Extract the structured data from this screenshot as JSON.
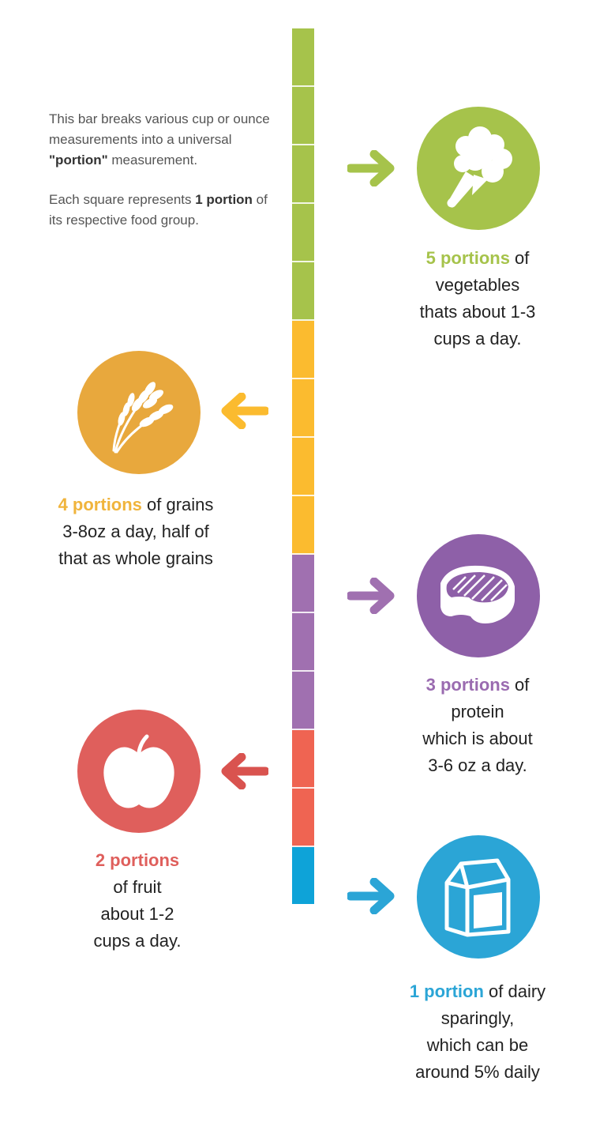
{
  "intro": {
    "p1_a": "This bar breaks various cup or ounce measurements into a universal ",
    "p1_bold": "\"portion\"",
    "p1_b": " measurement.",
    "p2_a": "Each square represents ",
    "p2_bold": "1 portion",
    "p2_b": " of its respective food group."
  },
  "colors": {
    "vegetables": "#a6c34b",
    "grains": "#fbbb2f",
    "grains_circle": "#e8a83d",
    "protein": "#a070b0",
    "protein_circle": "#8e60a8",
    "fruit": "#ef6452",
    "fruit_circle": "#df5f5c",
    "dairy": "#0ea3d8",
    "dairy_circle": "#2ba5d6"
  },
  "groups": [
    {
      "key": "vegetables",
      "portions": 5,
      "icon": "broccoli-icon",
      "highlight": "5 portions",
      "l1": " of",
      "l2": "vegetables",
      "l3": "thats about 1-3",
      "l4": "cups a day."
    },
    {
      "key": "grains",
      "portions": 4,
      "icon": "wheat-icon",
      "highlight": "4 portions",
      "l1": " of grains",
      "l2": "3-8oz a day, half of",
      "l3": "that as whole grains"
    },
    {
      "key": "protein",
      "portions": 3,
      "icon": "steak-icon",
      "highlight": "3 portions",
      "l1": " of",
      "l2": "protein",
      "l3": "which is about",
      "l4": "3-6 oz a day."
    },
    {
      "key": "fruit",
      "portions": 2,
      "icon": "apple-icon",
      "highlight": "2 portions",
      "l2": "of fruit",
      "l3": "about 1-2",
      "l4": "cups a day."
    },
    {
      "key": "dairy",
      "portions": 1,
      "icon": "milk-carton-icon",
      "highlight": "1 portion",
      "l1": " of dairy",
      "l2": "sparingly,",
      "l3": "which can be",
      "l4": "around 5% daily"
    }
  ]
}
